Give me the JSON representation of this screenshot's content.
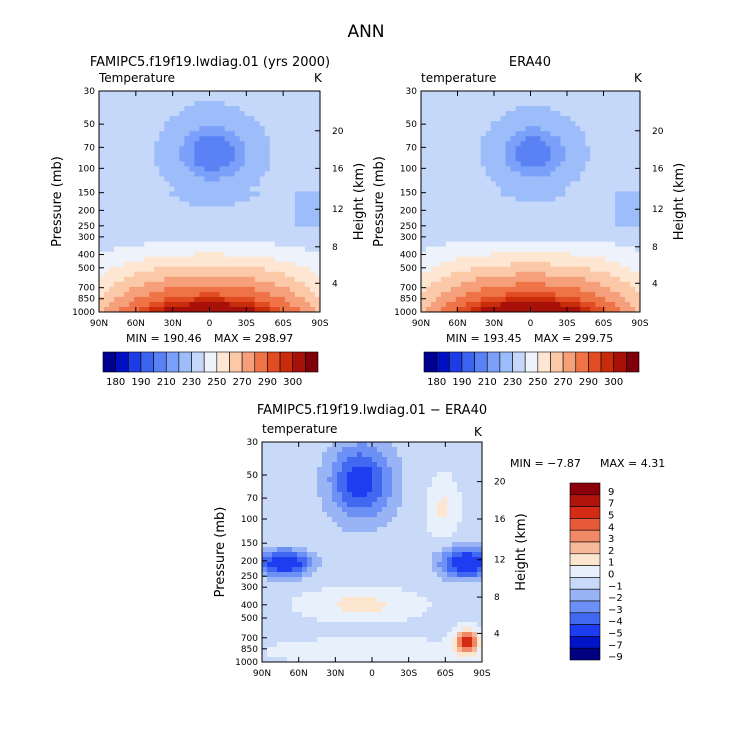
{
  "figure_title": "ANN",
  "palettes": {
    "abs": [
      "#000090",
      "#0010c0",
      "#1e3ce6",
      "#3c64f0",
      "#5a82f5",
      "#7aa0fa",
      "#9cbcfa",
      "#c6d8fa",
      "#eef2fb",
      "#fde6d2",
      "#fbc8a8",
      "#f5a07a",
      "#ee7448",
      "#e24c22",
      "#c82c0a",
      "#a8100a",
      "#80000a"
    ],
    "diff": [
      "#000080",
      "#0014c8",
      "#1e3cf0",
      "#4068f0",
      "#6c90f5",
      "#98b4f5",
      "#c8daf8",
      "#e8f0fb",
      "#fde6d0",
      "#f8b89a",
      "#f08a66",
      "#e65a3a",
      "#d42c14",
      "#b0140a",
      "#8a000a"
    ]
  },
  "chart_data": [
    {
      "type": "heatmap",
      "panel": "model",
      "title": "FAMIPC5.f19f19.lwdiag.01 (yrs 2000)",
      "variable_label": "Temperature",
      "units": "K",
      "ylabel": "Pressure (mb)",
      "ylabel_right": "Height (km)",
      "x_ticks": [
        "90N",
        "60N",
        "30N",
        "0",
        "30S",
        "60S",
        "90S"
      ],
      "y_ticks": [
        "30",
        "50",
        "70",
        "100",
        "150",
        "200",
        "250",
        "300",
        "400",
        "500",
        "700",
        "850",
        "1000"
      ],
      "height_ticks": [
        "20",
        "16",
        "12",
        "8",
        "4"
      ],
      "min_text": "MIN = 190.46",
      "max_text": "MAX = 298.97",
      "min": 190.46,
      "max": 298.97,
      "colorbar_labels": [
        "180",
        "190",
        "210",
        "230",
        "250",
        "270",
        "290",
        "300"
      ]
    },
    {
      "type": "heatmap",
      "panel": "obs",
      "title": "ERA40",
      "variable_label": "temperature",
      "units": "K",
      "ylabel": "Pressure (mb)",
      "ylabel_right": "Height (km)",
      "x_ticks": [
        "90N",
        "60N",
        "30N",
        "0",
        "30S",
        "60S",
        "90S"
      ],
      "y_ticks": [
        "30",
        "50",
        "70",
        "100",
        "150",
        "200",
        "250",
        "300",
        "400",
        "500",
        "700",
        "850",
        "1000"
      ],
      "height_ticks": [
        "20",
        "16",
        "12",
        "8",
        "4"
      ],
      "min_text": "MIN = 193.45",
      "max_text": "MAX = 299.75",
      "min": 193.45,
      "max": 299.75,
      "colorbar_labels": [
        "180",
        "190",
        "210",
        "230",
        "250",
        "270",
        "290",
        "300"
      ]
    },
    {
      "type": "heatmap",
      "panel": "diff",
      "title": "FAMIPC5.f19f19.lwdiag.01 − ERA40",
      "variable_label": "temperature",
      "units": "K",
      "ylabel": "Pressure (mb)",
      "ylabel_right": "Height (km)",
      "x_ticks": [
        "90N",
        "60N",
        "30N",
        "0",
        "30S",
        "60S",
        "90S"
      ],
      "y_ticks": [
        "30",
        "50",
        "70",
        "100",
        "150",
        "200",
        "250",
        "300",
        "400",
        "500",
        "700",
        "850",
        "1000"
      ],
      "height_ticks": [
        "20",
        "16",
        "12",
        "8",
        "4"
      ],
      "min_text": "MIN =  −7.87",
      "max_text": "MAX =    4.31",
      "min": -7.87,
      "max": 4.31,
      "colorbar_labels": [
        "9",
        "7",
        "5",
        "4",
        "3",
        "2",
        "1",
        "0",
        "−1",
        "−2",
        "−3",
        "−4",
        "−5",
        "−7",
        "−9"
      ]
    }
  ]
}
